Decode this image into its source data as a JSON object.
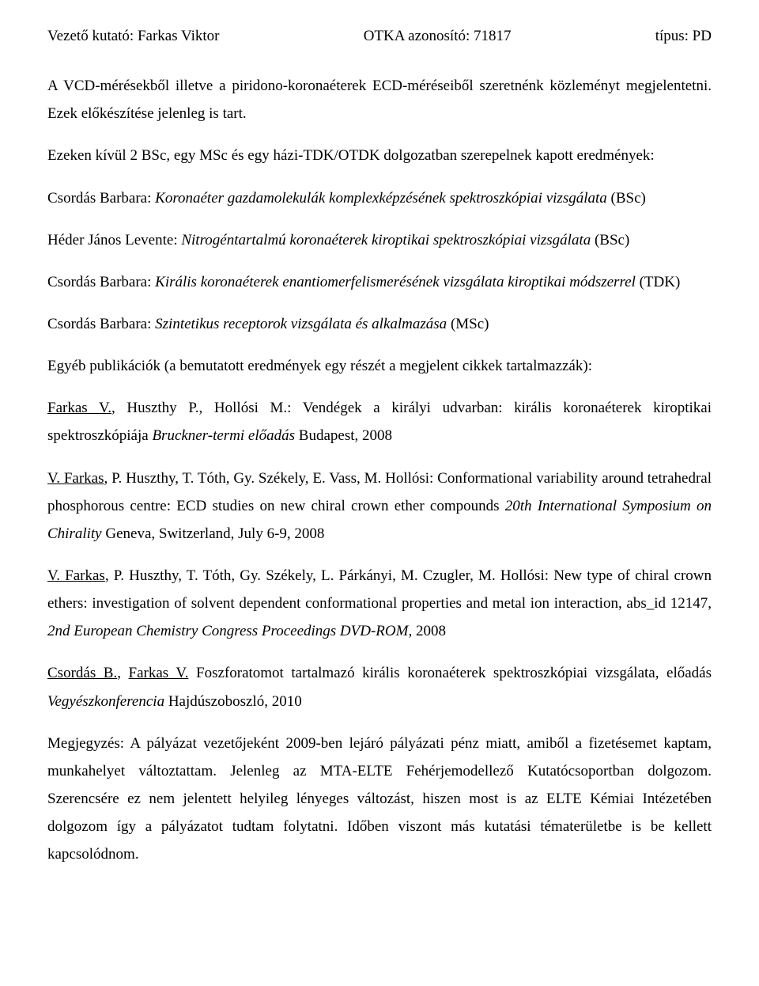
{
  "header": {
    "left": "Vezető kutató: Farkas Viktor",
    "center": "OTKA azonosító: 71817",
    "right": "típus: PD"
  },
  "p1": "A VCD-mérésekből illetve a piridono-koronaéterek ECD-méréseiből szeretnénk közleményt megjelentetni. Ezek előkészítése jelenleg is tart.",
  "p2": "Ezeken kívül 2 BSc, egy MSc és egy házi-TDK/OTDK dolgozatban szerepelnek kapott eredmények:",
  "p3_pre": "Csordás Barbara: ",
  "p3_ital": "Koronaéter gazdamolekulák komplexképzésének spektroszkópiai vizsgálata",
  "p3_post": " (BSc)",
  "p4_pre": "Héder János Levente: ",
  "p4_ital": "Nitrogéntartalmú koronaéterek kiroptikai spektroszkópiai vizsgálata",
  "p4_post": " (BSc)",
  "p5_pre": "Csordás Barbara: ",
  "p5_ital": "Királis koronaéterek enantiomerfelismerésének vizsgálata kiroptikai módszerrel",
  "p5_post": " (TDK)",
  "p6_pre": "Csordás Barbara: ",
  "p6_ital": "Szintetikus receptorok vizsgálata és alkalmazása",
  "p6_post": " (MSc)",
  "p7": "Egyéb publikációk (a bemutatott eredmények egy részét a megjelent cikkek tartalmazzák):",
  "p8_a": "Farkas V.",
  "p8_b": ", Huszthy P., Hollósi M.: Vendégek a királyi udvarban: királis koronaéterek kiroptikai spektroszkópiája ",
  "p8_ital": "Bruckner-termi előadás",
  "p8_c": " Budapest, 2008",
  "p9_a": "V. Farkas",
  "p9_b": ", P. Huszthy, T. Tóth, Gy. Székely, E. Vass, M. Hollósi: Conformational variability around tetrahedral phosphorous centre: ECD studies on new chiral crown ether compounds ",
  "p9_ital": "20th International Symposium on Chirality",
  "p9_c": " Geneva, Switzerland, July 6-9, 2008",
  "p10_a": "V. Farkas",
  "p10_b": ", P. Huszthy, T. Tóth, Gy. Székely, L. Párkányi, M. Czugler, M. Hollósi: New type of chiral crown ethers: investigation of solvent dependent conformational properties and metal ion interaction, abs_id 12147, ",
  "p10_ital": "2nd European Chemistry Congress Proceedings DVD-ROM",
  "p10_c": ", 2008",
  "p11_a": "Csordás B.",
  "p11_b": ", ",
  "p11_c": "Farkas V.",
  "p11_d": " Foszforatomot tartalmazó királis koronaéterek spektroszkópiai vizsgálata, előadás ",
  "p11_ital": "Vegyészkonferencia",
  "p11_e": " Hajdúszoboszló, 2010",
  "p12": "Megjegyzés: A pályázat vezetőjeként 2009-ben lejáró pályázati pénz miatt, amiből a fizetésemet kaptam, munkahelyet változtattam. Jelenleg az MTA-ELTE Fehérjemodellező Kutatócsoportban dolgozom. Szerencsére ez nem jelentett helyileg lényeges változást, hiszen most is az ELTE Kémiai Intézetében dolgozom így a pályázatot tudtam folytatni. Időben viszont más kutatási tématerületbe is be kellett kapcsolódnom."
}
